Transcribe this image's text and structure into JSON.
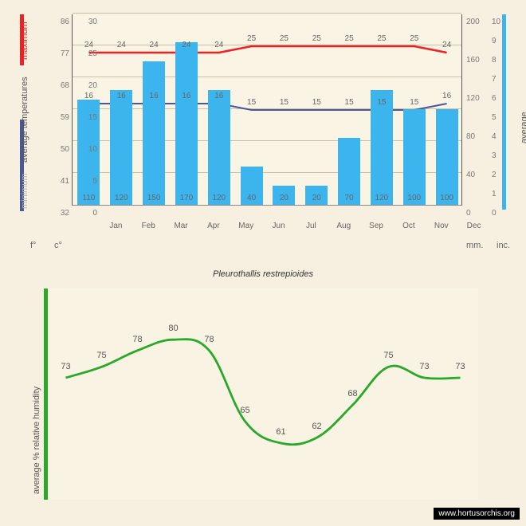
{
  "species": "Pleurothallis restrepioides",
  "watermark": "www.hortusorchis.org",
  "months": [
    "Jan",
    "Feb",
    "Mar",
    "Apr",
    "May",
    "Jun",
    "Jul",
    "Aug",
    "Sep",
    "Oct",
    "Nov",
    "Dec"
  ],
  "rainfall_mm": [
    110,
    120,
    150,
    170,
    120,
    40,
    20,
    20,
    70,
    120,
    100,
    100
  ],
  "temp_max": [
    24,
    24,
    24,
    24,
    24,
    25,
    25,
    25,
    25,
    25,
    25,
    24
  ],
  "temp_min": [
    16,
    16,
    16,
    16,
    16,
    15,
    15,
    15,
    15,
    15,
    15,
    16
  ],
  "humidity": [
    73,
    75,
    78,
    80,
    78,
    65,
    61,
    62,
    68,
    75,
    73,
    73
  ],
  "chart1": {
    "bar_color": "#3cb5ee",
    "max_color": "#ee2222",
    "min_color": "#4a5899",
    "bg": "#f7f0e0",
    "grid_color": "#c8c0a8",
    "c_ticks": [
      0,
      5,
      10,
      15,
      20,
      25,
      30
    ],
    "f_ticks": [
      32,
      41,
      50,
      59,
      68,
      77,
      86
    ],
    "mm_ticks": [
      0,
      40,
      80,
      120,
      160,
      200
    ],
    "in_ticks": [
      0,
      1,
      2,
      3,
      4,
      5,
      6,
      7,
      8,
      9,
      10
    ],
    "rain_max": 200,
    "c_range": [
      0,
      30
    ]
  },
  "labels": {
    "f": "f°",
    "c": "c°",
    "mm": "mm.",
    "inc": "inc.",
    "avg_temp": "average  temperatures",
    "minimum": "minimum",
    "maximum": "maximum",
    "avg_rain": "average rainfall",
    "avg_hum": "average %  relative humidity"
  },
  "chart2": {
    "line_color": "#2aa82a",
    "hum_min": 55,
    "hum_max": 85
  }
}
